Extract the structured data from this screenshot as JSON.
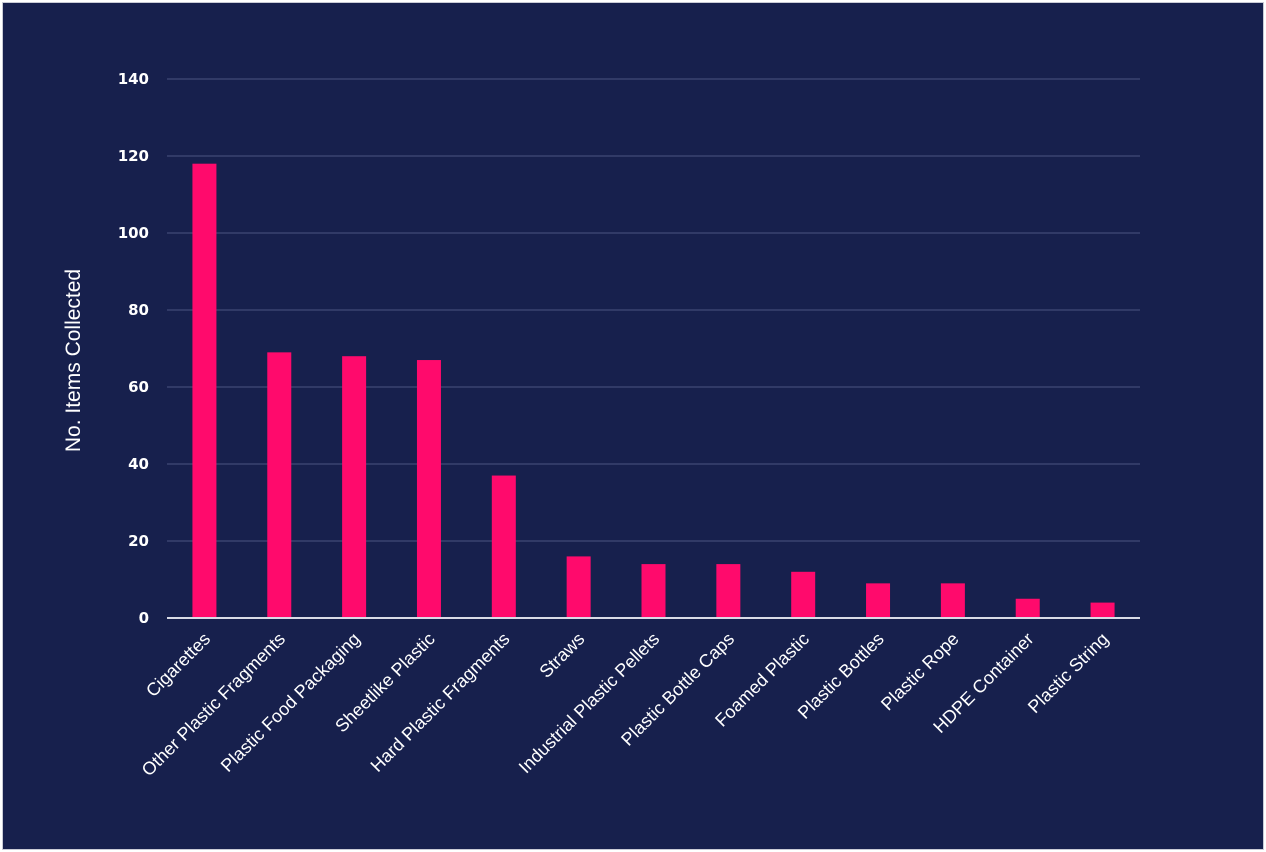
{
  "chart_data": {
    "type": "bar",
    "title": "",
    "xlabel": "",
    "ylabel": "No. Items Collected",
    "ylim": [
      0,
      140
    ],
    "yticks": [
      0,
      20,
      40,
      60,
      80,
      100,
      120,
      140
    ],
    "grid": true,
    "legend": "none",
    "categories": [
      "Cigarettes",
      "Other Plastic Fragments",
      "Plastic Food Packaging",
      "Sheetlike Plastic",
      "Hard Plastic Fragments",
      "Straws",
      "Industrial Plastic Pellets",
      "Plastic Bottle Caps",
      "Foamed Plastic",
      "Plastic Bottles",
      "Plastic Rope",
      "HDPE Container",
      "Plastic String"
    ],
    "values": [
      118,
      69,
      68,
      67,
      37,
      16,
      14,
      14,
      12,
      9,
      9,
      5,
      4
    ],
    "colors": {
      "background": "#17204d",
      "bar": "#ff0a6c",
      "grid": "#3a4270",
      "baseline": "#d9dbe6",
      "text": "#ffffff"
    }
  }
}
